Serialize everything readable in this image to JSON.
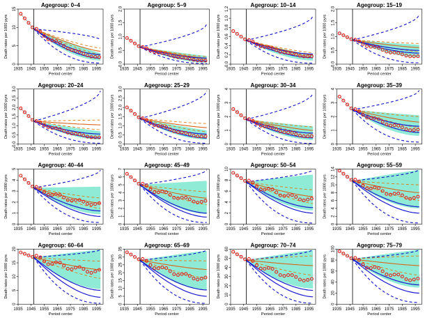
{
  "figure": {
    "x_label": "Period center",
    "y_label": "Death rates per 1000 pyrs",
    "title_prefix": "Agegroup:",
    "xlim": [
      1935,
      2000
    ],
    "break_year": 1947,
    "x_ticks": [
      1935,
      1945,
      1955,
      1965,
      1975,
      1985,
      1995
    ]
  },
  "chart_data": [
    {
      "type": "line",
      "title": "Agegroup: 0–4",
      "group": "0–4",
      "ylim": [
        0,
        15
      ],
      "y_ticks": [
        0,
        5,
        10,
        15
      ],
      "start": 13.7,
      "mid": 9.6,
      "end": 1.6,
      "end_low": 0.3,
      "end_high": 6.6,
      "obs_end": 1.8,
      "band_low": 1.0,
      "band_high": 3.0,
      "orange_end": 3.5,
      "blue_lower_end": 0.6,
      "blue_upper_end": 2.6
    },
    {
      "type": "line",
      "title": "Agegroup: 5–9",
      "group": "5–9",
      "ylim": [
        0,
        2.0
      ],
      "y_ticks": [
        0.0,
        0.5,
        1.0,
        1.5,
        2.0
      ],
      "start": 0.95,
      "mid": 0.62,
      "end": 0.11,
      "end_low": 0.02,
      "end_high": 1.45,
      "obs_end": 0.12,
      "band_low": 0.05,
      "band_high": 0.3,
      "orange_end": 0.22,
      "blue_lower_end": 0.06,
      "blue_upper_end": 0.22
    },
    {
      "type": "line",
      "title": "Agegroup: 10–14",
      "group": "10–14",
      "ylim": [
        0,
        1.2
      ],
      "y_ticks": [
        0.0,
        0.2,
        0.4,
        0.6,
        0.8,
        1.0,
        1.2
      ],
      "start": 0.72,
      "mid": 0.52,
      "end": 0.14,
      "end_low": 0.02,
      "end_high": 1.05,
      "obs_end": 0.16,
      "band_low": 0.08,
      "band_high": 0.2,
      "orange_end": 0.2,
      "blue_lower_end": 0.08,
      "blue_upper_end": 0.22
    },
    {
      "type": "line",
      "title": "Agegroup: 15–19",
      "group": "15–19",
      "ylim": [
        0,
        2.0
      ],
      "y_ticks": [
        0.0,
        0.5,
        1.0,
        1.5,
        2.0
      ],
      "start": 1.12,
      "mid": 0.88,
      "end": 0.4,
      "end_low": 0.05,
      "end_high": 1.8,
      "obs_end": 0.27,
      "band_low": 0.25,
      "band_high": 0.7,
      "orange_end": 0.6,
      "blue_lower_end": 0.2,
      "blue_upper_end": 0.5
    },
    {
      "type": "line",
      "title": "Agegroup: 20–24",
      "group": "20–24",
      "ylim": [
        0,
        3.0
      ],
      "y_ticks": [
        0.0,
        0.5,
        1.0,
        1.5,
        2.0,
        2.5,
        3.0
      ],
      "start": 1.95,
      "mid": 1.25,
      "end": 0.33,
      "end_low": 0.05,
      "end_high": 2.9,
      "obs_end": 0.35,
      "band_low": 0.25,
      "band_high": 0.7,
      "orange_end": 1.05,
      "blue_lower_end": 0.15,
      "blue_upper_end": 0.55
    },
    {
      "type": "line",
      "title": "Agegroup: 25–29",
      "group": "25–29",
      "ylim": [
        0,
        3.0
      ],
      "y_ticks": [
        0.0,
        0.5,
        1.0,
        1.5,
        2.0,
        2.5,
        3.0
      ],
      "start": 2.0,
      "mid": 1.4,
      "end": 0.33,
      "end_low": 0.05,
      "end_high": 2.9,
      "obs_end": 0.4,
      "band_low": 0.25,
      "band_high": 0.75,
      "orange_end": 0.9,
      "blue_lower_end": 0.15,
      "blue_upper_end": 0.55
    },
    {
      "type": "line",
      "title": "Agegroup: 30–34",
      "group": "30–34",
      "ylim": [
        0,
        4
      ],
      "y_ticks": [
        0,
        1,
        2,
        3,
        4
      ],
      "start": 2.55,
      "mid": 1.8,
      "end": 0.45,
      "end_low": 0.05,
      "end_high": 3.7,
      "obs_end": 0.55,
      "band_low": 0.3,
      "band_high": 1.3,
      "orange_end": 1.0,
      "blue_lower_end": 0.2,
      "blue_upper_end": 0.8
    },
    {
      "type": "line",
      "title": "Agegroup: 35–39",
      "group": "35–39",
      "ylim": [
        0,
        4
      ],
      "y_ticks": [
        0,
        1,
        2,
        3,
        4
      ],
      "start": 3.45,
      "mid": 2.5,
      "end": 0.85,
      "end_low": 0.15,
      "end_high": 3.9,
      "obs_end": 1.0,
      "band_low": 0.6,
      "band_high": 2.1,
      "orange_end": 1.6,
      "blue_lower_end": 0.4,
      "blue_upper_end": 1.3
    },
    {
      "type": "line",
      "title": "Agegroup: 40–44",
      "group": "40–44",
      "ylim": [
        0,
        5
      ],
      "y_ticks": [
        0,
        1,
        2,
        3,
        4,
        5
      ],
      "start": 4.4,
      "mid": 3.3,
      "end": 0.7,
      "end_low": 0.15,
      "end_high": 4.9,
      "obs_end": 1.8,
      "band_low": 0.9,
      "band_high": 3.4,
      "orange_end": 1.9,
      "blue_lower_end": 0.4,
      "blue_upper_end": 1.2
    },
    {
      "type": "line",
      "title": "Agegroup: 45–49",
      "group": "45–49",
      "ylim": [
        0,
        7
      ],
      "y_ticks": [
        0,
        1,
        2,
        3,
        4,
        5,
        6,
        7
      ],
      "start": 6.4,
      "mid": 5.0,
      "end": 0.9,
      "end_low": 0.2,
      "end_high": 6.9,
      "obs_end": 2.8,
      "band_low": 1.3,
      "band_high": 5.5,
      "orange_end": 3.3,
      "blue_lower_end": 0.5,
      "blue_upper_end": 1.4
    },
    {
      "type": "line",
      "title": "Agegroup: 50–54",
      "group": "50–54",
      "ylim": [
        0,
        10
      ],
      "y_ticks": [
        0,
        2,
        4,
        6,
        8,
        10
      ],
      "start": 9.3,
      "mid": 7.7,
      "end": 2.0,
      "end_low": 0.2,
      "end_high": 9.9,
      "obs_end": 4.4,
      "band_low": 2.5,
      "band_high": 9.0,
      "orange_end": 5.0,
      "blue_lower_end": 0.6,
      "blue_upper_end": 3.0
    },
    {
      "type": "line",
      "title": "Agegroup: 55–59",
      "group": "55–59",
      "ylim": [
        0,
        14
      ],
      "y_ticks": [
        0,
        2,
        4,
        6,
        8,
        10,
        12,
        14
      ],
      "start": 13.6,
      "mid": 11.0,
      "end": 2.8,
      "end_low": 0.3,
      "end_high": 13.9,
      "obs_end": 6.6,
      "band_low": 4.0,
      "band_high": 13.8,
      "orange_end": 8.0,
      "blue_lower_end": 0.8,
      "blue_upper_end": 4.4
    },
    {
      "type": "line",
      "title": "Agegroup: 60–64",
      "group": "60–64",
      "ylim": [
        0,
        20
      ],
      "y_ticks": [
        0,
        5,
        10,
        15,
        20
      ],
      "start": 18.8,
      "mid": 17.0,
      "end": 2.5,
      "end_low": 0.3,
      "end_high": 19.8,
      "obs_end": 11.8,
      "band_low": 5.5,
      "band_high": 19.8,
      "orange_end": 12.5,
      "blue_lower_end": 0.8,
      "blue_upper_end": 5.0
    },
    {
      "type": "line",
      "title": "Agegroup: 65–69",
      "group": "65–69",
      "ylim": [
        0,
        35
      ],
      "y_ticks": [
        0,
        5,
        10,
        15,
        20,
        25,
        30,
        35
      ],
      "start": 33.0,
      "mid": 28.0,
      "end": 5.0,
      "end_low": 0.5,
      "end_high": 34.5,
      "obs_end": 16.0,
      "band_low": 9.0,
      "band_high": 34.0,
      "orange_end": 22.0,
      "blue_lower_end": 1.5,
      "blue_upper_end": 9.0
    },
    {
      "type": "line",
      "title": "Agegroup: 70–74",
      "group": "70–74",
      "ylim": [
        0,
        60
      ],
      "y_ticks": [
        0,
        10,
        20,
        30,
        40,
        50,
        60
      ],
      "start": 57.0,
      "mid": 48.0,
      "end": 8.0,
      "end_low": 1.0,
      "end_high": 59.5,
      "obs_end": 26.0,
      "band_low": 17.0,
      "band_high": 59.0,
      "orange_end": 42.0,
      "blue_lower_end": 2.0,
      "blue_upper_end": 15.0
    },
    {
      "type": "line",
      "title": "Agegroup: 75–79",
      "group": "75–79",
      "ylim": [
        0,
        100
      ],
      "y_ticks": [
        0,
        20,
        40,
        60,
        80,
        100
      ],
      "start": 96.0,
      "mid": 82.0,
      "end": 20.0,
      "end_low": 3.0,
      "end_high": 99.0,
      "obs_end": 44.0,
      "band_low": 30.0,
      "band_high": 99.0,
      "orange_end": 70.0,
      "blue_lower_end": 5.0,
      "blue_upper_end": 35.0
    }
  ]
}
